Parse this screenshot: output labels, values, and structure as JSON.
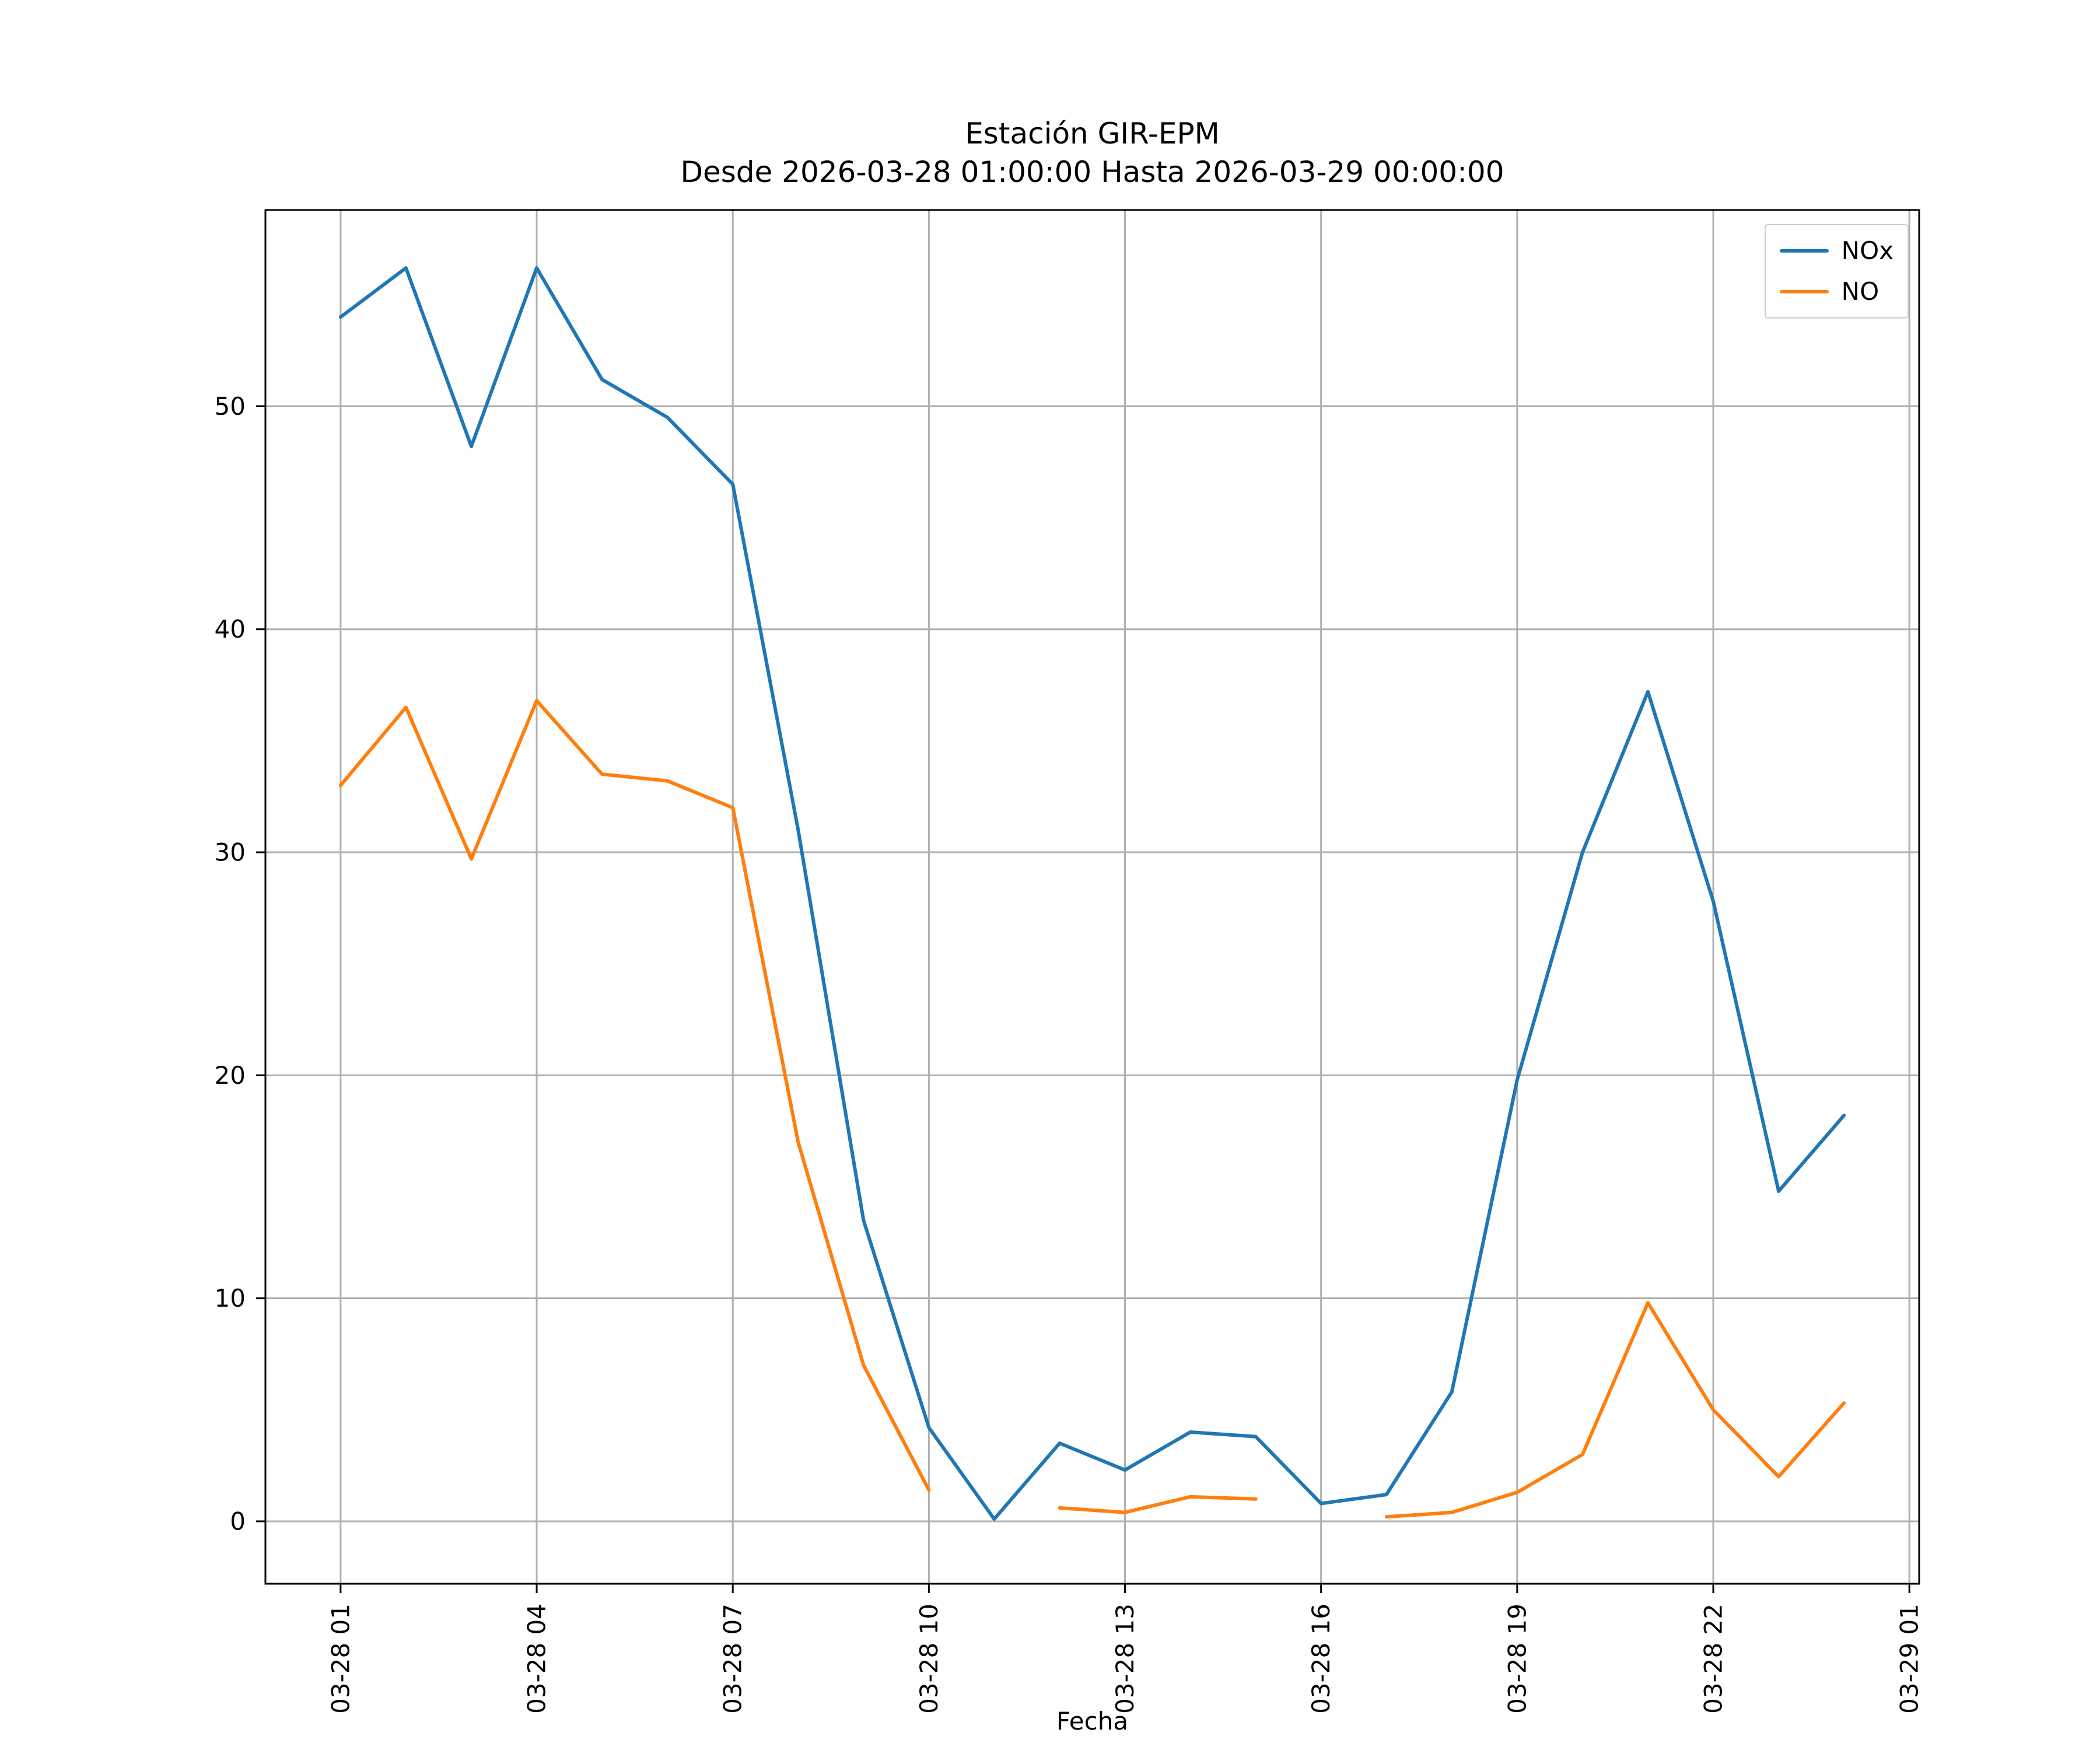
{
  "chart_data": {
    "type": "line",
    "title": "Estación GIR-EPM",
    "subtitle": "Desde 2026-03-28 01:00:00 Hasta 2026-03-29 00:00:00",
    "xlabel": "Fecha",
    "ylabel": "",
    "grid": true,
    "grid_color": "#b0b0b0",
    "legend_position": "upper right",
    "xlim": [
      -0.15,
      25.15
    ],
    "ylim": [
      -2.8,
      58.8
    ],
    "x_hours": [
      1,
      2,
      3,
      4,
      5,
      6,
      7,
      8,
      9,
      10,
      11,
      12,
      13,
      14,
      15,
      16,
      17,
      18,
      19,
      20,
      21,
      22,
      23,
      24
    ],
    "x_tick_hours": [
      1,
      4,
      7,
      10,
      13,
      16,
      19,
      22,
      25
    ],
    "x_tick_labels": [
      "03-28 01",
      "03-28 04",
      "03-28 07",
      "03-28 10",
      "03-28 13",
      "03-28 16",
      "03-28 19",
      "03-28 22",
      "03-29 01"
    ],
    "y_ticks": [
      0,
      10,
      20,
      30,
      40,
      50
    ],
    "series": [
      {
        "name": "NOx",
        "color": "#1f77b4",
        "values": [
          54.0,
          56.2,
          48.2,
          56.2,
          51.2,
          49.5,
          46.5,
          31.0,
          13.5,
          4.2,
          0.1,
          3.5,
          2.3,
          4.0,
          3.8,
          0.8,
          1.2,
          5.8,
          19.8,
          30.0,
          37.2,
          27.8,
          14.8,
          18.2
        ]
      },
      {
        "name": "NO",
        "color": "#ff7f0e",
        "values": [
          33.0,
          36.5,
          29.7,
          36.8,
          33.5,
          33.2,
          32.0,
          17.0,
          7.0,
          1.4,
          null,
          0.6,
          0.4,
          1.1,
          1.0,
          null,
          0.2,
          0.4,
          1.3,
          3.0,
          9.8,
          5.0,
          2.0,
          5.3
        ]
      }
    ]
  }
}
